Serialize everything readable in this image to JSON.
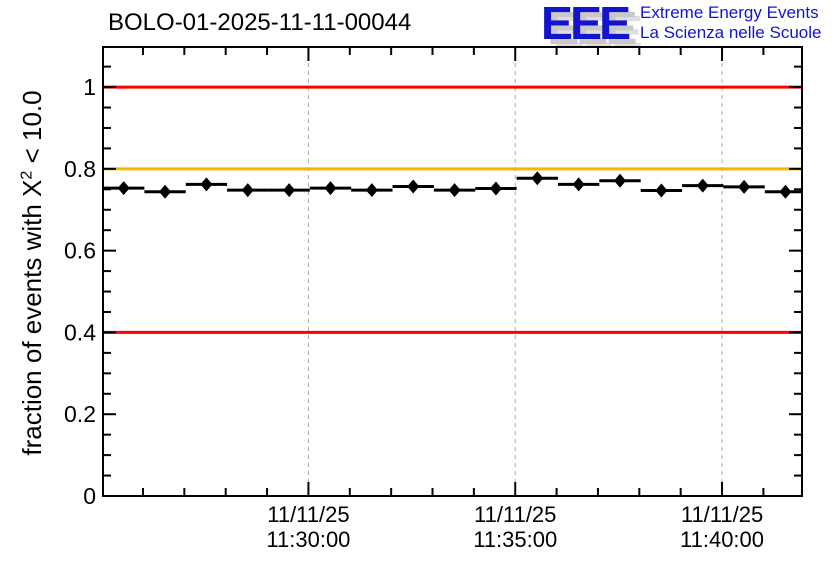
{
  "header": {
    "logo": {
      "wordmark": "EEE",
      "tagline1": "Extreme Energy Events",
      "tagline2": "La Scienza nelle Scuole"
    }
  },
  "y_axis_label": {
    "pre": "fraction of events with X",
    "sup": "2",
    "post": " < 10.0"
  },
  "colors": {
    "reference_red": "#ff0000",
    "reference_orange": "#ffb300",
    "gridline_gray": "#aaaaaa",
    "logo_blue": "#1414cc",
    "series_black": "#000000"
  },
  "chart_data": {
    "type": "scatter",
    "title": "BOLO-01-2025-11-11-00044",
    "ylabel": "fraction of events with X^2 < 10.0",
    "xlabel": "",
    "marker": "filled-diamond",
    "x_is_time": true,
    "x_date": "11/11/25",
    "x_range": [
      "11:25:02",
      "11:41:56"
    ],
    "ylim": [
      0,
      1.098
    ],
    "x": [
      "11:25:32",
      "11:26:32",
      "11:27:32",
      "11:28:32",
      "11:29:32",
      "11:30:32",
      "11:31:32",
      "11:32:32",
      "11:33:32",
      "11:34:32",
      "11:35:32",
      "11:36:32",
      "11:37:32",
      "11:38:32",
      "11:39:32",
      "11:40:32",
      "11:41:32"
    ],
    "y": [
      0.753,
      0.744,
      0.762,
      0.748,
      0.748,
      0.753,
      0.748,
      0.757,
      0.748,
      0.752,
      0.777,
      0.762,
      0.771,
      0.747,
      0.759,
      0.756,
      0.744
    ],
    "x_bin_width_seconds": 60,
    "x_ticks_major": [
      "11:30:00",
      "11:35:00",
      "11:40:00"
    ],
    "x_tick_labels": [
      {
        "line1": "11/11/25",
        "line2": "11:30:00"
      },
      {
        "line1": "11/11/25",
        "line2": "11:35:00"
      },
      {
        "line1": "11/11/25",
        "line2": "11:40:00"
      }
    ],
    "x_minor_step_seconds": 60,
    "y_ticks_major": [
      0,
      0.2,
      0.4,
      0.6,
      0.8,
      1.0
    ],
    "y_tick_labels": [
      "0",
      "0.2",
      "0.4",
      "0.6",
      "0.8",
      "1"
    ],
    "y_minor_step": 0.05,
    "reference_lines": [
      {
        "y": 1.0,
        "color": "#ff0000"
      },
      {
        "y": 0.8,
        "color": "#ffb300"
      },
      {
        "y": 0.4,
        "color": "#ff0000"
      }
    ],
    "grid": "dashed vertical lines at major x ticks",
    "legend": null
  }
}
